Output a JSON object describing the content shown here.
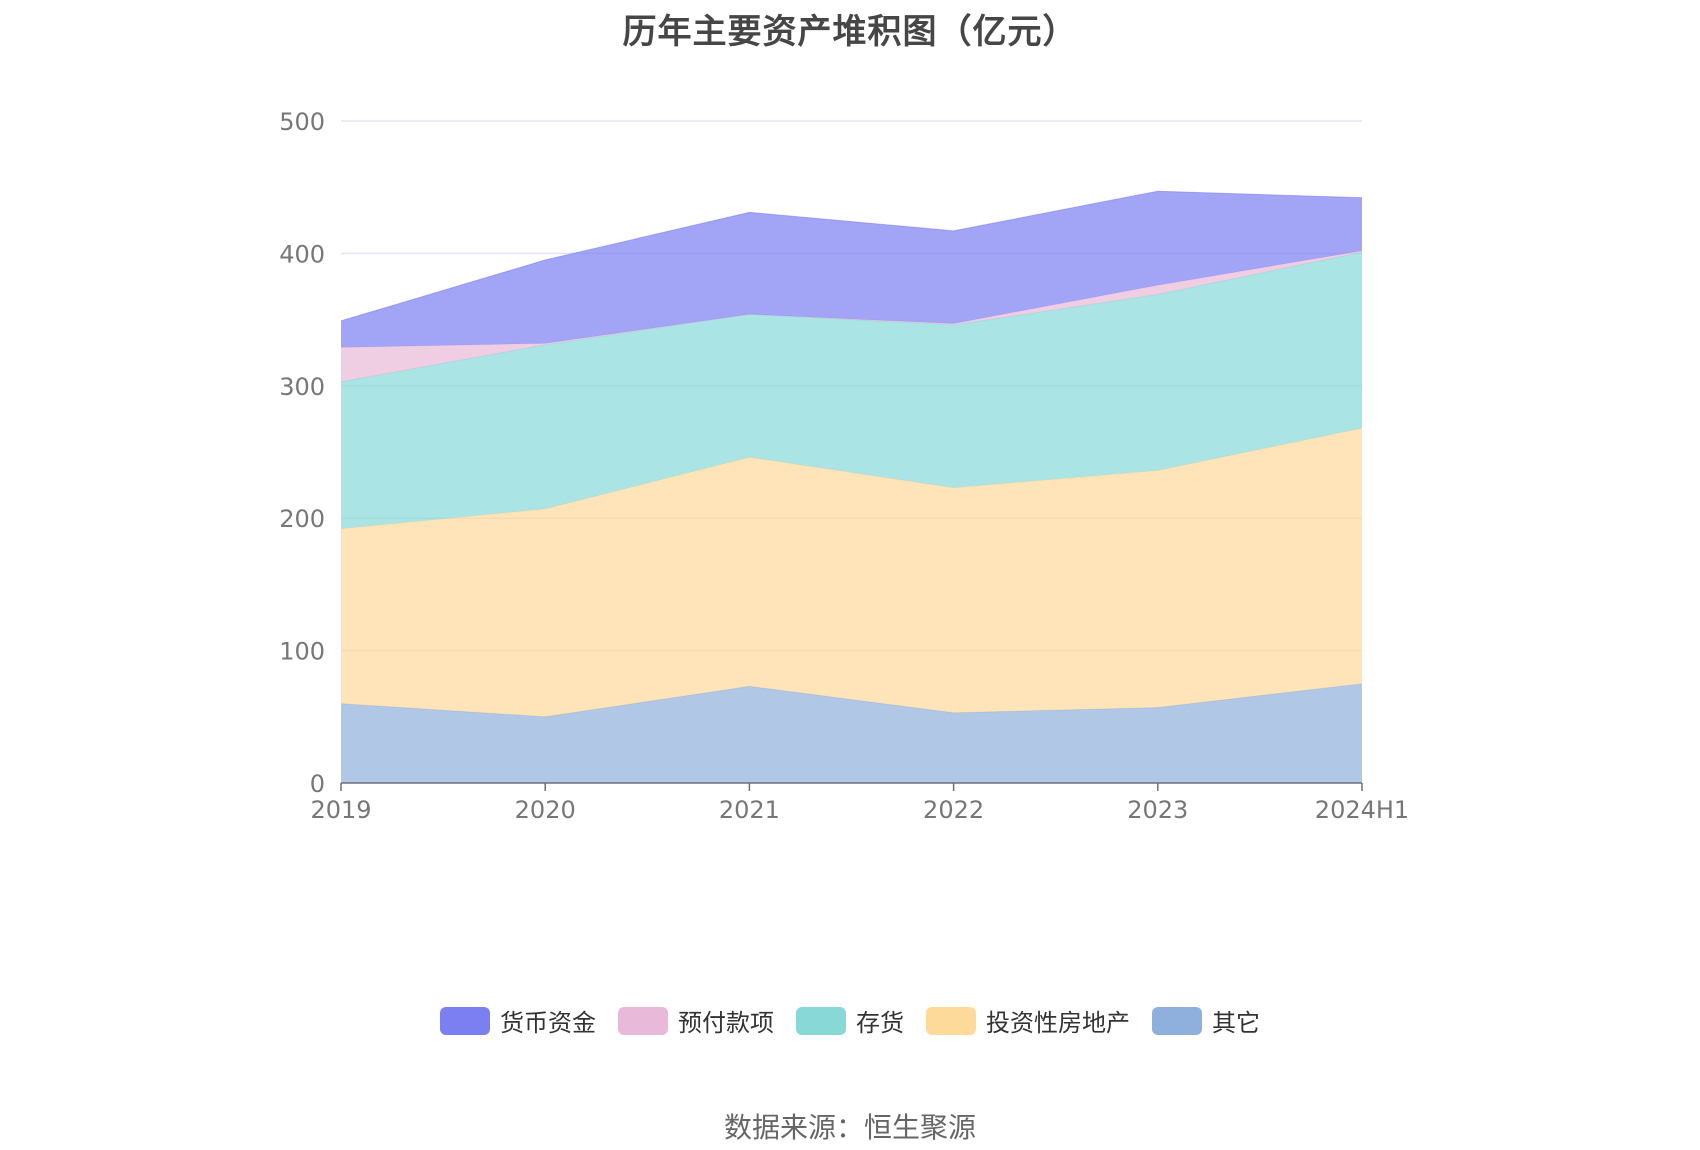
{
  "title": "历年主要资产堆积图（亿元）",
  "source": "数据来源：恒生聚源",
  "chart_data": {
    "type": "area",
    "stacked": true,
    "x": [
      "2019",
      "2020",
      "2021",
      "2022",
      "2023",
      "2024H1"
    ],
    "ylim": [
      0,
      500
    ],
    "yticks": [
      0,
      100,
      200,
      300,
      400,
      500
    ],
    "grid": true,
    "legend_position": "bottom",
    "series": [
      {
        "name": "其它",
        "color": "#8fb0dc",
        "values": [
          60,
          50,
          73,
          53,
          57,
          75
        ]
      },
      {
        "name": "投资性房地产",
        "color": "#fdd99a",
        "values": [
          132,
          157,
          173,
          170,
          179,
          193
        ]
      },
      {
        "name": "存货",
        "color": "#88d8d8",
        "values": [
          111,
          124,
          108,
          123,
          133,
          133
        ]
      },
      {
        "name": "预付款项",
        "color": "#e8b9d8",
        "values": [
          26,
          1,
          0,
          1,
          7,
          1
        ]
      },
      {
        "name": "货币资金",
        "color": "#7b7ff2",
        "values": [
          20,
          63,
          77,
          70,
          71,
          40
        ]
      }
    ],
    "legend_order": [
      "货币资金",
      "预付款项",
      "存货",
      "投资性房地产",
      "其它"
    ]
  }
}
